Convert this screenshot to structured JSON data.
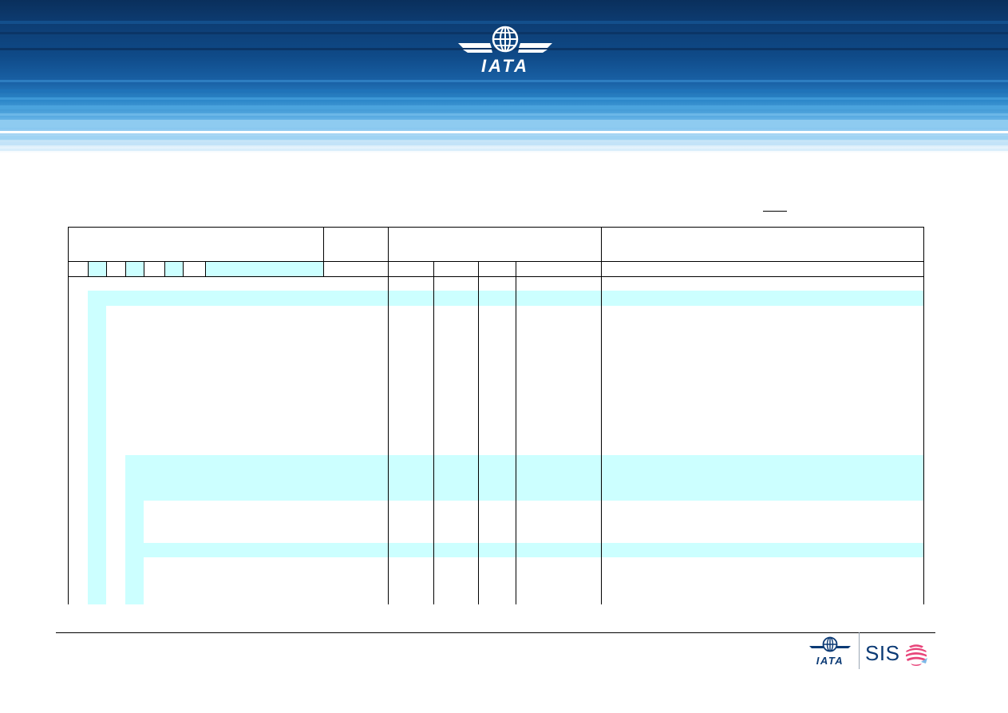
{
  "header": {
    "logo_text": "IATA"
  },
  "footer": {
    "logo_text": "IATA",
    "product_text": "SIS"
  },
  "colors": {
    "banner_dark": "#0a2f5c",
    "banner_light": "#86c6ef",
    "table_highlight": "#ccffff",
    "sis_pink": "#e8457a"
  },
  "icons": {
    "header_logo": "iata-globe-wings-logo",
    "footer_logo": "iata-globe-wings-logo",
    "sis_logo": "sis-sphere-logo"
  }
}
